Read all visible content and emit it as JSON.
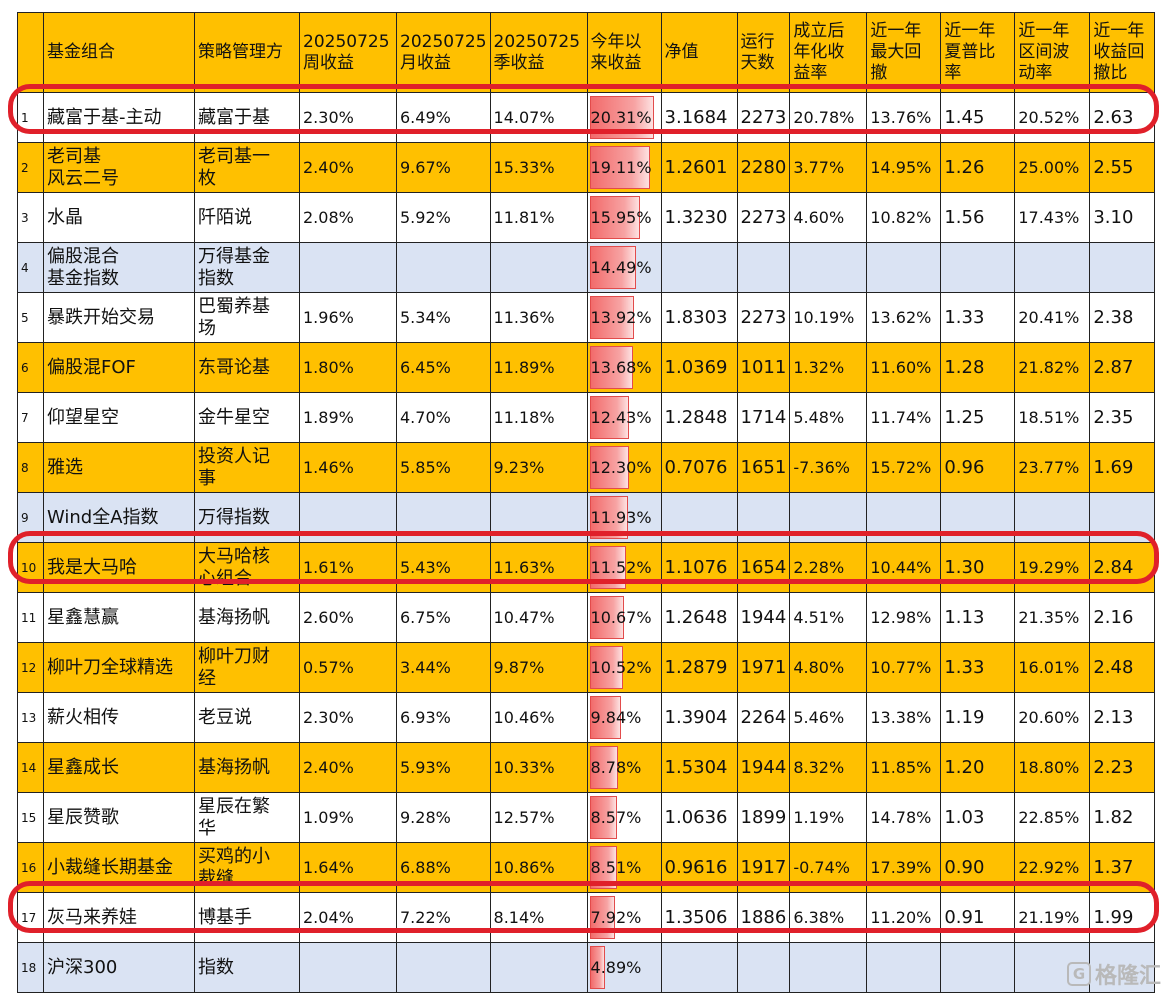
{
  "headers": [
    "",
    "基金组合",
    "策略管理方",
    "20250725\n周收益",
    "20250725\n月收益",
    "20250725\n季收益",
    "今年以\n来收益",
    "净值",
    "运行\n天数",
    "成立后\n年化收\n益率",
    "近一年\n最大回\n撤",
    "近一年\n夏普比\n率",
    "近一年\n区间波\n动率",
    "近一年\n收益回\n撤比"
  ],
  "rows": [
    {
      "idx": "1",
      "name": "藏富于基-主动",
      "manager": "藏富于基",
      "week": "2.30%",
      "month": "6.49%",
      "quarter": "14.07%",
      "ytd": "20.31%",
      "ytd_value": 20.31,
      "nav": "3.1684",
      "days": "2273",
      "annual": "20.78%",
      "mdd": "13.76%",
      "sharpe": "1.45",
      "vol": "20.52%",
      "calmar": "2.63",
      "style": "white"
    },
    {
      "idx": "2",
      "name": "老司基\n风云二号",
      "manager": "老司基一\n枚",
      "week": "2.40%",
      "month": "9.67%",
      "quarter": "15.33%",
      "ytd": "19.11%",
      "ytd_value": 19.11,
      "nav": "1.2601",
      "days": "2280",
      "annual": "3.77%",
      "mdd": "14.95%",
      "sharpe": "1.26",
      "vol": "25.00%",
      "calmar": "2.55",
      "style": "orange"
    },
    {
      "idx": "3",
      "name": "水晶",
      "manager": "阡陌说",
      "week": "2.08%",
      "month": "5.92%",
      "quarter": "11.81%",
      "ytd": "15.95%",
      "ytd_value": 15.95,
      "nav": "1.3230",
      "days": "2273",
      "annual": "4.60%",
      "mdd": "10.82%",
      "sharpe": "1.56",
      "vol": "17.43%",
      "calmar": "3.10",
      "style": "white"
    },
    {
      "idx": "4",
      "name": "偏股混合\n基金指数",
      "manager": "万得基金\n指数",
      "week": "",
      "month": "",
      "quarter": "",
      "ytd": "14.49%",
      "ytd_value": 14.49,
      "nav": "",
      "days": "",
      "annual": "",
      "mdd": "",
      "sharpe": "",
      "vol": "",
      "calmar": "",
      "style": "blue"
    },
    {
      "idx": "5",
      "name": "暴跌开始交易",
      "manager": "巴蜀养基\n场",
      "week": "1.96%",
      "month": "5.34%",
      "quarter": "11.36%",
      "ytd": "13.92%",
      "ytd_value": 13.92,
      "nav": "1.8303",
      "days": "2273",
      "annual": "10.19%",
      "mdd": "13.62%",
      "sharpe": "1.33",
      "vol": "20.41%",
      "calmar": "2.38",
      "style": "white"
    },
    {
      "idx": "6",
      "name": "偏股混FOF",
      "manager": "东哥论基",
      "week": "1.80%",
      "month": "6.45%",
      "quarter": "11.89%",
      "ytd": "13.68%",
      "ytd_value": 13.68,
      "nav": "1.0369",
      "days": "1011",
      "annual": "1.32%",
      "mdd": "11.60%",
      "sharpe": "1.28",
      "vol": "21.82%",
      "calmar": "2.87",
      "style": "orange"
    },
    {
      "idx": "7",
      "name": "仰望星空",
      "manager": "金牛星空",
      "week": "1.89%",
      "month": "4.70%",
      "quarter": "11.18%",
      "ytd": "12.43%",
      "ytd_value": 12.43,
      "nav": "1.2848",
      "days": "1714",
      "annual": "5.48%",
      "mdd": "11.74%",
      "sharpe": "1.25",
      "vol": "18.51%",
      "calmar": "2.35",
      "style": "white"
    },
    {
      "idx": "8",
      "name": "雅选",
      "manager": "投资人记\n事",
      "week": "1.46%",
      "month": "5.85%",
      "quarter": "9.23%",
      "ytd": "12.30%",
      "ytd_value": 12.3,
      "nav": "0.7076",
      "days": "1651",
      "annual": "-7.36%",
      "mdd": "15.72%",
      "sharpe": "0.96",
      "vol": "23.77%",
      "calmar": "1.69",
      "style": "orange"
    },
    {
      "idx": "9",
      "name": "Wind全A指数",
      "manager": "万得指数",
      "week": "",
      "month": "",
      "quarter": "",
      "ytd": "11.93%",
      "ytd_value": 11.93,
      "nav": "",
      "days": "",
      "annual": "",
      "mdd": "",
      "sharpe": "",
      "vol": "",
      "calmar": "",
      "style": "blue"
    },
    {
      "idx": "10",
      "name": "我是大马哈",
      "manager": "大马哈核\n心组合",
      "week": "1.61%",
      "month": "5.43%",
      "quarter": "11.63%",
      "ytd": "11.52%",
      "ytd_value": 11.52,
      "nav": "1.1076",
      "days": "1654",
      "annual": "2.28%",
      "mdd": "10.44%",
      "sharpe": "1.30",
      "vol": "19.29%",
      "calmar": "2.84",
      "style": "orange"
    },
    {
      "idx": "11",
      "name": "星鑫慧赢",
      "manager": "基海扬帆",
      "week": "2.60%",
      "month": "6.75%",
      "quarter": "10.47%",
      "ytd": "10.67%",
      "ytd_value": 10.67,
      "nav": "1.2648",
      "days": "1944",
      "annual": "4.51%",
      "mdd": "12.98%",
      "sharpe": "1.13",
      "vol": "21.35%",
      "calmar": "2.16",
      "style": "white"
    },
    {
      "idx": "12",
      "name": "柳叶刀全球精选",
      "manager": "柳叶刀财\n经",
      "week": "0.57%",
      "month": "3.44%",
      "quarter": "9.87%",
      "ytd": "10.52%",
      "ytd_value": 10.52,
      "nav": "1.2879",
      "days": "1971",
      "annual": "4.80%",
      "mdd": "10.77%",
      "sharpe": "1.33",
      "vol": "16.01%",
      "calmar": "2.48",
      "style": "orange"
    },
    {
      "idx": "13",
      "name": "薪火相传",
      "manager": "老豆说",
      "week": "2.30%",
      "month": "6.93%",
      "quarter": "10.46%",
      "ytd": "9.84%",
      "ytd_value": 9.84,
      "nav": "1.3904",
      "days": "2264",
      "annual": "5.46%",
      "mdd": "13.38%",
      "sharpe": "1.19",
      "vol": "20.60%",
      "calmar": "2.13",
      "style": "white"
    },
    {
      "idx": "14",
      "name": "星鑫成长",
      "manager": "基海扬帆",
      "week": "2.40%",
      "month": "5.93%",
      "quarter": "10.33%",
      "ytd": "8.78%",
      "ytd_value": 8.78,
      "nav": "1.5304",
      "days": "1944",
      "annual": "8.32%",
      "mdd": "11.85%",
      "sharpe": "1.20",
      "vol": "18.80%",
      "calmar": "2.23",
      "style": "orange"
    },
    {
      "idx": "15",
      "name": "星辰赞歌",
      "manager": "星辰在繁\n华",
      "week": "1.09%",
      "month": "9.28%",
      "quarter": "12.57%",
      "ytd": "8.57%",
      "ytd_value": 8.57,
      "nav": "1.0636",
      "days": "1899",
      "annual": "1.19%",
      "mdd": "14.78%",
      "sharpe": "1.03",
      "vol": "22.85%",
      "calmar": "1.82",
      "style": "white"
    },
    {
      "idx": "16",
      "name": "小裁缝长期基金",
      "manager": "买鸡的小\n裁缝",
      "week": "1.64%",
      "month": "6.88%",
      "quarter": "10.86%",
      "ytd": "8.51%",
      "ytd_value": 8.51,
      "nav": "0.9616",
      "days": "1917",
      "annual": "-0.74%",
      "mdd": "17.39%",
      "sharpe": "0.90",
      "vol": "22.92%",
      "calmar": "1.37",
      "style": "orange"
    },
    {
      "idx": "17",
      "name": "灰马来养娃",
      "manager": "博基手",
      "week": "2.04%",
      "month": "7.22%",
      "quarter": "8.14%",
      "ytd": "7.92%",
      "ytd_value": 7.92,
      "nav": "1.3506",
      "days": "1886",
      "annual": "6.38%",
      "mdd": "11.20%",
      "sharpe": "0.91",
      "vol": "21.19%",
      "calmar": "1.99",
      "style": "white"
    },
    {
      "idx": "18",
      "name": "沪深300",
      "manager": "指数",
      "week": "",
      "month": "",
      "quarter": "",
      "ytd": "4.89%",
      "ytd_value": 4.89,
      "nav": "",
      "days": "",
      "annual": "",
      "mdd": "",
      "sharpe": "",
      "vol": "",
      "calmar": "",
      "style": "blue"
    }
  ],
  "highlighted_rows": [
    "1",
    "10",
    "17"
  ],
  "colors": {
    "header": "#ffc000",
    "orange_row": "#ffc000",
    "blue_row": "#dae3f3",
    "highlight": "#e0202a",
    "bar": "#f26b6b"
  },
  "watermark": {
    "icon": "gelonghui-logo-icon",
    "text": "格隆汇"
  }
}
